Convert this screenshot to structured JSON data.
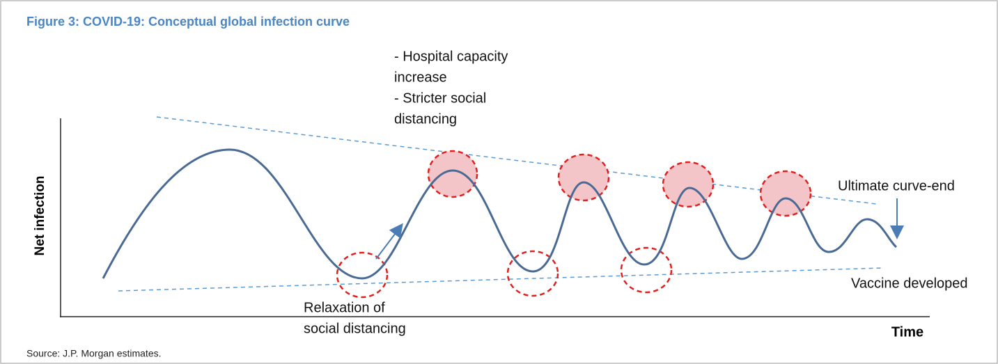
{
  "title": "Figure 3: COVID-19: Conceptual global infection curve",
  "y_axis_label": "Net infection",
  "x_axis_label": "Time",
  "annotations": {
    "peaks": [
      "- Hospital capacity",
      "increase",
      "- Stricter social",
      "distancing"
    ],
    "troughs": [
      "Relaxation of",
      "social distancing"
    ],
    "upper_trend": "Ultimate curve-end",
    "lower_trend": "Vaccine developed"
  },
  "source": "Source: J.P. Morgan estimates."
}
